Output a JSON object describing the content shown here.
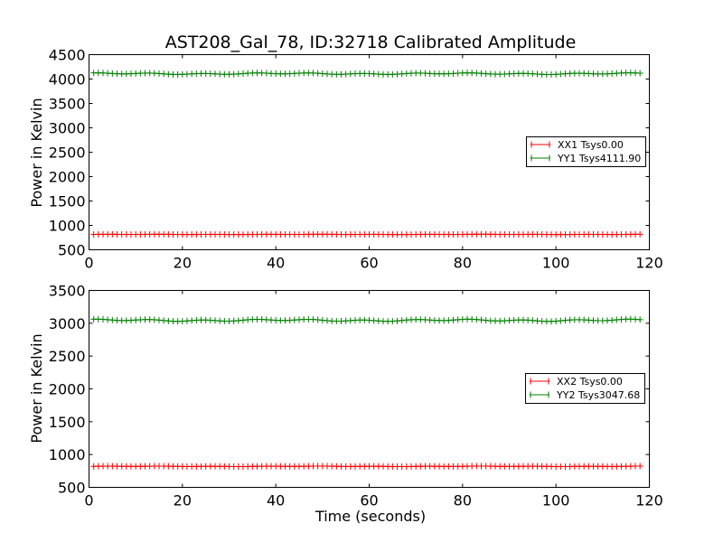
{
  "chart_data": [
    {
      "type": "line",
      "title": "AST208_Gal_78, ID:32718 Calibrated Amplitude",
      "xlabel": "",
      "ylabel": "Power in Kelvin",
      "xlim": [
        0,
        120
      ],
      "ylim": [
        500,
        4500
      ],
      "xticks": [
        "0",
        "20",
        "40",
        "60",
        "80",
        "100",
        "120"
      ],
      "yticks": [
        "500",
        "1000",
        "1500",
        "2000",
        "2500",
        "3000",
        "3500",
        "4000",
        "4500"
      ],
      "legend_position": "center-right",
      "grid": false,
      "series": [
        {
          "name": "XX1 Tsys0.00",
          "color": "#ff0000",
          "marker": "+",
          "x_range": [
            1,
            118
          ],
          "baseline": 815,
          "wiggle": 3
        },
        {
          "name": "YY1 Tsys4111.90",
          "color": "#008000",
          "marker": "+",
          "x_range": [
            1,
            118
          ],
          "baseline": 4110,
          "wiggle": 18
        }
      ]
    },
    {
      "type": "line",
      "title": "",
      "xlabel": "Time (seconds)",
      "ylabel": "Power in Kelvin",
      "xlim": [
        0,
        120
      ],
      "ylim": [
        500,
        3500
      ],
      "xticks": [
        "0",
        "20",
        "40",
        "60",
        "80",
        "100",
        "120"
      ],
      "yticks": [
        "500",
        "1000",
        "1500",
        "2000",
        "2500",
        "3000",
        "3500"
      ],
      "legend_position": "center-right",
      "grid": false,
      "series": [
        {
          "name": "XX2 Tsys0.00",
          "color": "#ff0000",
          "marker": "+",
          "x_range": [
            1,
            118
          ],
          "baseline": 820,
          "wiggle": 4
        },
        {
          "name": "YY2 Tsys3047.68",
          "color": "#008000",
          "marker": "+",
          "x_range": [
            1,
            118
          ],
          "baseline": 3045,
          "wiggle": 18
        }
      ]
    }
  ]
}
